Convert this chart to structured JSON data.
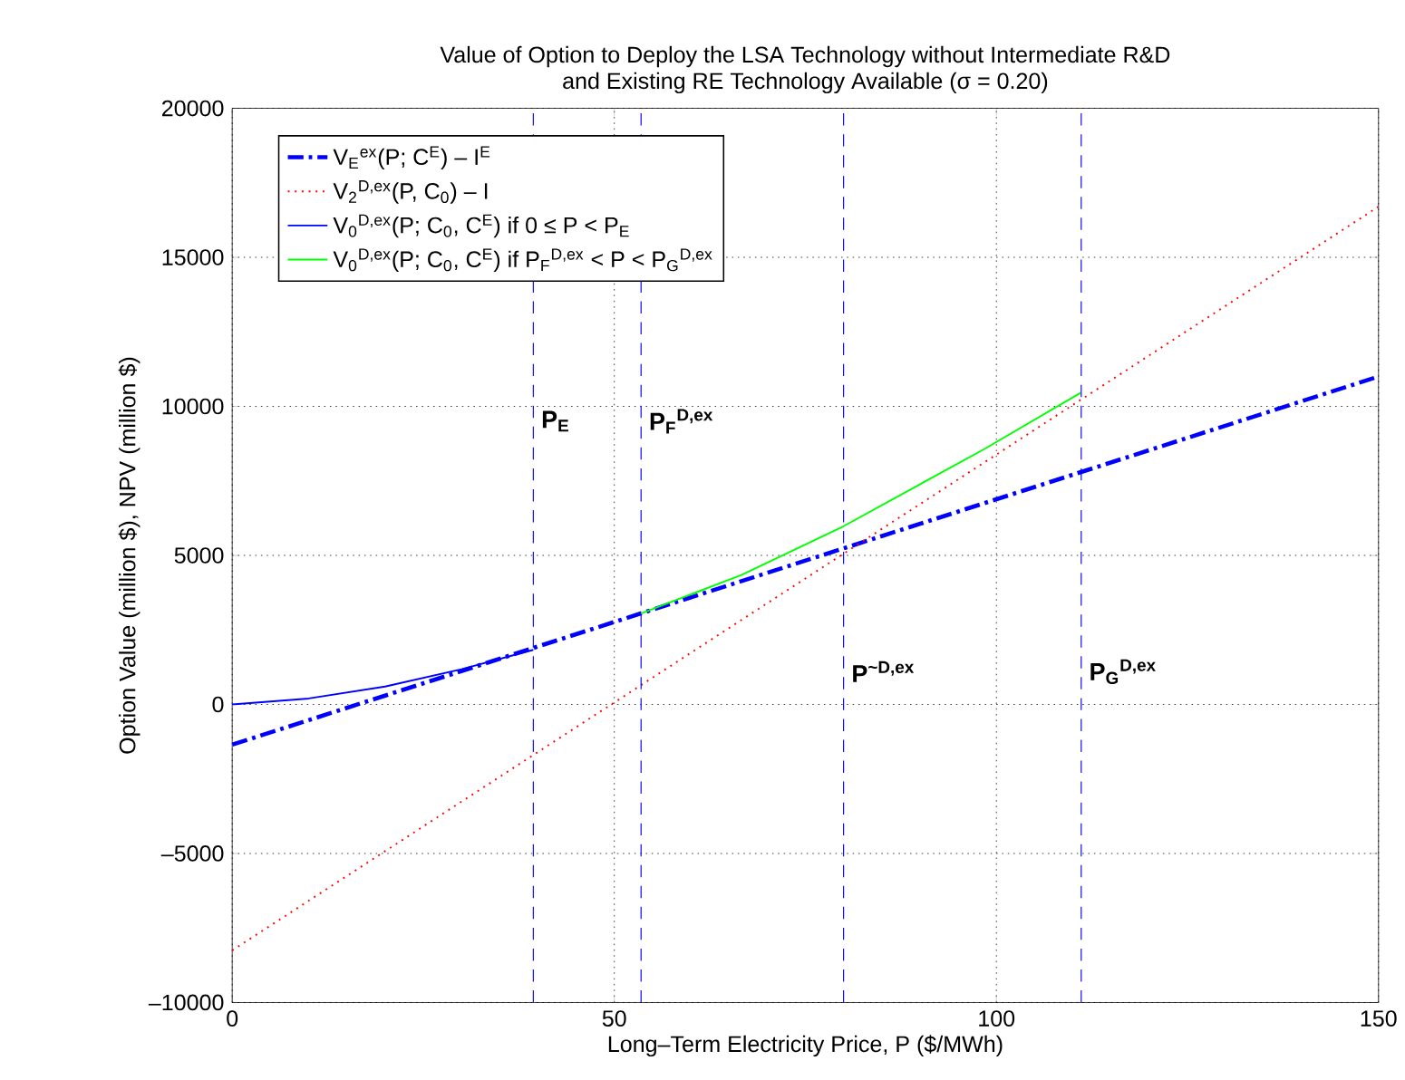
{
  "chart_data": {
    "type": "line",
    "title": "Value of Option to Deploy the LSA Technology without Intermediate R&D\nand Existing RE Technology Available (σ = 0.20)",
    "xlabel": "Long–Term Electricity Price, P ($/MWh)",
    "ylabel": "Option Value (million $), NPV (million $)",
    "xlim": [
      0,
      150
    ],
    "ylim": [
      -10000,
      20000
    ],
    "xticks": [
      0,
      50,
      100,
      150
    ],
    "yticks": [
      {
        "value": -10000,
        "label": "–10000"
      },
      {
        "value": -5000,
        "label": "–5000"
      },
      0,
      5000,
      10000,
      15000,
      20000
    ],
    "grid": true,
    "legend": "top left",
    "series": [
      {
        "name": "V$_{E}$$^{ex}$(P; C$^{E}$) – I$^{E}$",
        "color": "#0000ff",
        "line_style": "dashdot",
        "x": [
          0,
          150
        ],
        "values": [
          -1350,
          11000
        ]
      },
      {
        "name": "V$_{2}$$^{D,ex}$(P, C$_{0}$) – I",
        "color": "#ff0000",
        "line_style": "dotted",
        "x": [
          0,
          150
        ],
        "values": [
          -8250,
          16700
        ]
      },
      {
        "name": "V$_{0}$$^{D,ex}$(P; C$_{0}$, C$^{E}$) if 0 ≤ P < P$_{E}$",
        "color": "#0000ff",
        "line_style": "solid",
        "x": [
          0,
          10,
          20,
          30,
          39.4
        ],
        "values": [
          0,
          200,
          600,
          1180,
          1830
        ]
      },
      {
        "name": "V$_{0}$$^{D,ex}$(P; C$_{0}$, C$^{E}$) if P$_{F}$$^{D,ex}$ < P < P$_{G}$$^{D,ex}$",
        "color": "#00ff00",
        "line_style": "solid",
        "x": [
          53.5,
          66.7,
          80,
          98.5,
          111
        ],
        "values": [
          3050,
          4350,
          5980,
          8580,
          10450
        ]
      }
    ],
    "ref_lines": [
      {
        "axis": "x",
        "value": 39.4,
        "label": "P$_{E}$",
        "color": "#0000ff",
        "line_style": "dashed"
      },
      {
        "axis": "x",
        "value": 53.5,
        "label": "P$_{F}$$^{D,ex}$",
        "color": "#0000ff",
        "line_style": "dashed"
      },
      {
        "axis": "x",
        "value": 80,
        "label": "P$^{~D,ex}$",
        "color": "#0000ff",
        "line_style": "dashed"
      },
      {
        "axis": "x",
        "value": 111.1,
        "label": "P$_{G}$$^{D,ex}$",
        "color": "#0000ff",
        "line_style": "dashed"
      }
    ]
  }
}
